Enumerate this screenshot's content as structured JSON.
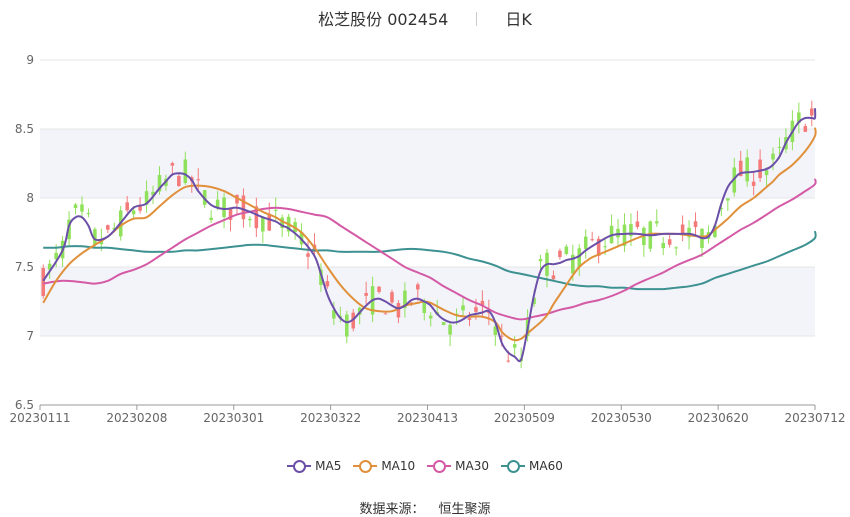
{
  "header": {
    "title": "松芝股份 002454",
    "period": "日K"
  },
  "source": {
    "label": "数据来源：",
    "value": "恒生聚源"
  },
  "legend": [
    {
      "name": "MA5",
      "color": "#6b4fa8"
    },
    {
      "name": "MA10",
      "color": "#e0903a"
    },
    {
      "name": "MA30",
      "color": "#d45aa6"
    },
    {
      "name": "MA60",
      "color": "#3d9191"
    }
  ],
  "colors": {
    "up": "#f47a7a",
    "down": "#8fe05a",
    "band": "#f3f4fa"
  },
  "chart_data": {
    "type": "candlestick",
    "ylim": [
      6.5,
      9
    ],
    "y_ticks": [
      "6.5",
      "7",
      "7.5",
      "8",
      "8.5",
      "9"
    ],
    "x_ticks": [
      "20230111",
      "20230208",
      "20230301",
      "20230322",
      "20230413",
      "20230509",
      "20230530",
      "20230620",
      "20230712"
    ],
    "candle_count": 120,
    "ma_series": [
      {
        "name": "MA5",
        "color": "#6b4fa8",
        "points": [
          [
            0,
            7.4
          ],
          [
            3,
            7.62
          ],
          [
            4,
            7.8
          ],
          [
            5,
            7.86
          ],
          [
            6,
            7.86
          ],
          [
            7,
            7.8
          ],
          [
            8,
            7.7
          ],
          [
            10,
            7.72
          ],
          [
            12,
            7.82
          ],
          [
            14,
            7.93
          ],
          [
            16,
            7.96
          ],
          [
            18,
            8.07
          ],
          [
            19,
            8.12
          ],
          [
            20,
            8.17
          ],
          [
            21,
            8.18
          ],
          [
            22,
            8.17
          ],
          [
            23,
            8.13
          ],
          [
            24,
            8.05
          ],
          [
            26,
            7.95
          ],
          [
            28,
            7.92
          ],
          [
            30,
            7.93
          ],
          [
            32,
            7.9
          ],
          [
            34,
            7.86
          ],
          [
            36,
            7.83
          ],
          [
            37,
            7.8
          ],
          [
            38,
            7.78
          ],
          [
            40,
            7.7
          ],
          [
            42,
            7.58
          ],
          [
            43,
            7.45
          ],
          [
            44,
            7.3
          ],
          [
            45,
            7.2
          ],
          [
            46,
            7.13
          ],
          [
            47,
            7.1
          ],
          [
            48,
            7.12
          ],
          [
            49,
            7.17
          ],
          [
            50,
            7.22
          ],
          [
            51,
            7.26
          ],
          [
            52,
            7.27
          ],
          [
            53,
            7.25
          ],
          [
            54,
            7.22
          ],
          [
            55,
            7.2
          ],
          [
            56,
            7.22
          ],
          [
            57,
            7.26
          ],
          [
            58,
            7.27
          ],
          [
            59,
            7.25
          ],
          [
            60,
            7.22
          ],
          [
            61,
            7.16
          ],
          [
            62,
            7.12
          ],
          [
            63,
            7.1
          ],
          [
            64,
            7.1
          ],
          [
            65,
            7.12
          ],
          [
            66,
            7.15
          ],
          [
            67,
            7.16
          ],
          [
            68,
            7.17
          ],
          [
            69,
            7.18
          ],
          [
            70,
            7.1
          ],
          [
            71,
            6.95
          ],
          [
            72,
            6.88
          ],
          [
            73,
            6.85
          ],
          [
            74,
            6.83
          ],
          [
            75,
            7.05
          ],
          [
            76,
            7.3
          ],
          [
            77,
            7.47
          ],
          [
            78,
            7.52
          ],
          [
            79,
            7.52
          ],
          [
            80,
            7.53
          ],
          [
            81,
            7.55
          ],
          [
            82,
            7.56
          ],
          [
            83,
            7.58
          ],
          [
            84,
            7.62
          ],
          [
            86,
            7.68
          ],
          [
            88,
            7.73
          ],
          [
            90,
            7.74
          ],
          [
            92,
            7.74
          ],
          [
            94,
            7.73
          ],
          [
            96,
            7.74
          ],
          [
            98,
            7.74
          ],
          [
            100,
            7.74
          ],
          [
            101,
            7.73
          ],
          [
            102,
            7.71
          ],
          [
            103,
            7.72
          ],
          [
            104,
            7.8
          ],
          [
            105,
            7.96
          ],
          [
            106,
            8.08
          ],
          [
            107,
            8.14
          ],
          [
            108,
            8.18
          ],
          [
            110,
            8.19
          ],
          [
            112,
            8.21
          ],
          [
            113,
            8.24
          ],
          [
            114,
            8.3
          ],
          [
            115,
            8.4
          ],
          [
            116,
            8.48
          ],
          [
            117,
            8.55
          ],
          [
            118,
            8.58
          ],
          [
            119,
            8.58
          ],
          [
            120,
            8.58
          ],
          [
            121,
            8.65
          ]
        ]
      },
      {
        "name": "MA10",
        "color": "#e0903a",
        "points": [
          [
            0,
            7.24
          ],
          [
            2,
            7.4
          ],
          [
            4,
            7.52
          ],
          [
            6,
            7.6
          ],
          [
            8,
            7.66
          ],
          [
            10,
            7.72
          ],
          [
            12,
            7.8
          ],
          [
            14,
            7.85
          ],
          [
            16,
            7.86
          ],
          [
            18,
            7.94
          ],
          [
            20,
            8.02
          ],
          [
            22,
            8.08
          ],
          [
            24,
            8.09
          ],
          [
            26,
            8.08
          ],
          [
            28,
            8.05
          ],
          [
            30,
            8.0
          ],
          [
            32,
            7.95
          ],
          [
            34,
            7.9
          ],
          [
            36,
            7.86
          ],
          [
            37,
            7.83
          ],
          [
            38,
            7.81
          ],
          [
            40,
            7.75
          ],
          [
            42,
            7.64
          ],
          [
            44,
            7.5
          ],
          [
            46,
            7.37
          ],
          [
            48,
            7.27
          ],
          [
            50,
            7.2
          ],
          [
            52,
            7.18
          ],
          [
            54,
            7.18
          ],
          [
            56,
            7.22
          ],
          [
            58,
            7.24
          ],
          [
            59,
            7.25
          ],
          [
            60,
            7.24
          ],
          [
            62,
            7.19
          ],
          [
            64,
            7.15
          ],
          [
            66,
            7.14
          ],
          [
            68,
            7.14
          ],
          [
            70,
            7.1
          ],
          [
            71,
            7.03
          ],
          [
            72,
            6.99
          ],
          [
            73,
            6.97
          ],
          [
            74,
            6.98
          ],
          [
            75,
            7.02
          ],
          [
            76,
            7.06
          ],
          [
            77,
            7.1
          ],
          [
            78,
            7.15
          ],
          [
            79,
            7.23
          ],
          [
            80,
            7.3
          ],
          [
            81,
            7.37
          ],
          [
            82,
            7.44
          ],
          [
            83,
            7.5
          ],
          [
            84,
            7.54
          ],
          [
            85,
            7.57
          ],
          [
            86,
            7.59
          ],
          [
            88,
            7.63
          ],
          [
            90,
            7.67
          ],
          [
            92,
            7.71
          ],
          [
            94,
            7.74
          ],
          [
            96,
            7.74
          ],
          [
            98,
            7.74
          ],
          [
            100,
            7.73
          ],
          [
            102,
            7.72
          ],
          [
            103,
            7.73
          ],
          [
            104,
            7.77
          ],
          [
            106,
            7.85
          ],
          [
            108,
            7.94
          ],
          [
            110,
            8.0
          ],
          [
            112,
            8.08
          ],
          [
            113,
            8.12
          ],
          [
            114,
            8.17
          ],
          [
            116,
            8.24
          ],
          [
            118,
            8.34
          ],
          [
            120,
            8.45
          ],
          [
            121,
            8.51
          ]
        ]
      },
      {
        "name": "MA30",
        "color": "#d45aa6",
        "points": [
          [
            0,
            7.38
          ],
          [
            3,
            7.4
          ],
          [
            6,
            7.39
          ],
          [
            8,
            7.38
          ],
          [
            10,
            7.4
          ],
          [
            12,
            7.45
          ],
          [
            14,
            7.48
          ],
          [
            16,
            7.52
          ],
          [
            18,
            7.58
          ],
          [
            20,
            7.64
          ],
          [
            22,
            7.7
          ],
          [
            24,
            7.75
          ],
          [
            26,
            7.8
          ],
          [
            28,
            7.84
          ],
          [
            30,
            7.88
          ],
          [
            32,
            7.9
          ],
          [
            34,
            7.92
          ],
          [
            36,
            7.93
          ],
          [
            38,
            7.92
          ],
          [
            40,
            7.9
          ],
          [
            42,
            7.88
          ],
          [
            44,
            7.86
          ],
          [
            46,
            7.8
          ],
          [
            48,
            7.74
          ],
          [
            50,
            7.68
          ],
          [
            52,
            7.62
          ],
          [
            54,
            7.56
          ],
          [
            56,
            7.5
          ],
          [
            58,
            7.46
          ],
          [
            60,
            7.42
          ],
          [
            62,
            7.36
          ],
          [
            64,
            7.31
          ],
          [
            66,
            7.26
          ],
          [
            68,
            7.22
          ],
          [
            70,
            7.17
          ],
          [
            72,
            7.14
          ],
          [
            74,
            7.12
          ],
          [
            76,
            7.14
          ],
          [
            78,
            7.16
          ],
          [
            80,
            7.19
          ],
          [
            82,
            7.21
          ],
          [
            84,
            7.24
          ],
          [
            86,
            7.26
          ],
          [
            88,
            7.29
          ],
          [
            90,
            7.33
          ],
          [
            92,
            7.38
          ],
          [
            94,
            7.42
          ],
          [
            96,
            7.46
          ],
          [
            98,
            7.51
          ],
          [
            100,
            7.55
          ],
          [
            102,
            7.59
          ],
          [
            104,
            7.65
          ],
          [
            106,
            7.71
          ],
          [
            108,
            7.77
          ],
          [
            110,
            7.82
          ],
          [
            112,
            7.88
          ],
          [
            114,
            7.94
          ],
          [
            116,
            7.99
          ],
          [
            118,
            8.05
          ],
          [
            120,
            8.1
          ],
          [
            121,
            8.14
          ]
        ]
      },
      {
        "name": "MA60",
        "color": "#3d9191",
        "points": [
          [
            0,
            7.64
          ],
          [
            2,
            7.64
          ],
          [
            4,
            7.65
          ],
          [
            6,
            7.65
          ],
          [
            8,
            7.64
          ],
          [
            10,
            7.64
          ],
          [
            12,
            7.63
          ],
          [
            14,
            7.62
          ],
          [
            16,
            7.61
          ],
          [
            18,
            7.61
          ],
          [
            20,
            7.61
          ],
          [
            22,
            7.62
          ],
          [
            24,
            7.62
          ],
          [
            26,
            7.63
          ],
          [
            28,
            7.64
          ],
          [
            30,
            7.65
          ],
          [
            32,
            7.66
          ],
          [
            34,
            7.66
          ],
          [
            36,
            7.65
          ],
          [
            38,
            7.64
          ],
          [
            40,
            7.63
          ],
          [
            42,
            7.62
          ],
          [
            44,
            7.62
          ],
          [
            46,
            7.61
          ],
          [
            48,
            7.61
          ],
          [
            50,
            7.61
          ],
          [
            52,
            7.61
          ],
          [
            54,
            7.62
          ],
          [
            56,
            7.63
          ],
          [
            58,
            7.63
          ],
          [
            60,
            7.62
          ],
          [
            62,
            7.61
          ],
          [
            64,
            7.59
          ],
          [
            66,
            7.56
          ],
          [
            68,
            7.54
          ],
          [
            70,
            7.51
          ],
          [
            72,
            7.47
          ],
          [
            74,
            7.45
          ],
          [
            76,
            7.43
          ],
          [
            78,
            7.41
          ],
          [
            80,
            7.39
          ],
          [
            82,
            7.37
          ],
          [
            84,
            7.36
          ],
          [
            86,
            7.36
          ],
          [
            88,
            7.35
          ],
          [
            90,
            7.35
          ],
          [
            92,
            7.34
          ],
          [
            94,
            7.34
          ],
          [
            96,
            7.34
          ],
          [
            98,
            7.35
          ],
          [
            100,
            7.36
          ],
          [
            102,
            7.38
          ],
          [
            104,
            7.42
          ],
          [
            106,
            7.45
          ],
          [
            108,
            7.48
          ],
          [
            110,
            7.51
          ],
          [
            112,
            7.54
          ],
          [
            114,
            7.58
          ],
          [
            116,
            7.62
          ],
          [
            118,
            7.66
          ],
          [
            120,
            7.71
          ],
          [
            121,
            7.76
          ]
        ]
      }
    ]
  }
}
